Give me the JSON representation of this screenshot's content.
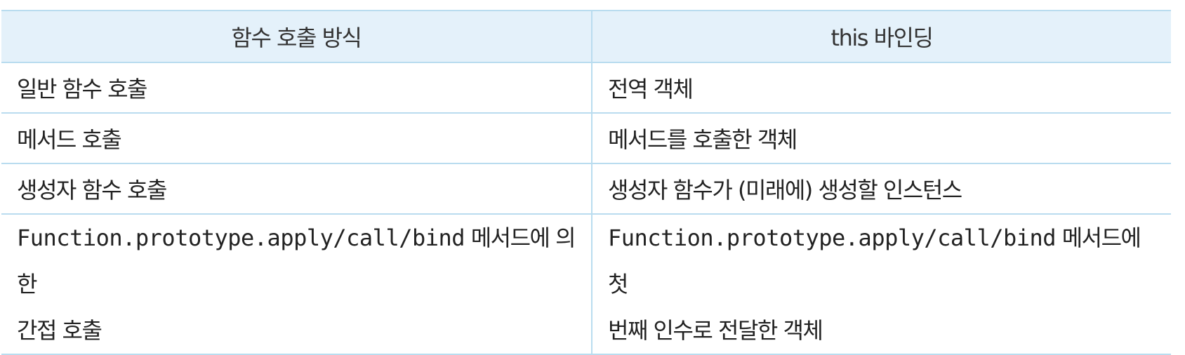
{
  "table": {
    "headers": [
      "함수 호출 방식",
      "this 바인딩"
    ],
    "rows": [
      {
        "method": "일반 함수 호출",
        "binding": "전역 객체"
      },
      {
        "method": "메서드 호출",
        "binding": "메서드를 호출한 객체"
      },
      {
        "method": "생성자 함수 호출",
        "binding": "생성자 함수가 (미래에) 생성할 인스턴스"
      },
      {
        "method_code": "Function.prototype.apply/call/bind",
        "method_rest_line1": " 메서드에 의한",
        "method_rest_line2": "간접 호출",
        "binding_code": "Function.prototype.apply/call/bind",
        "binding_rest_line1": " 메서드에 첫",
        "binding_rest_line2": "번째 인수로 전달한 객체"
      }
    ]
  }
}
